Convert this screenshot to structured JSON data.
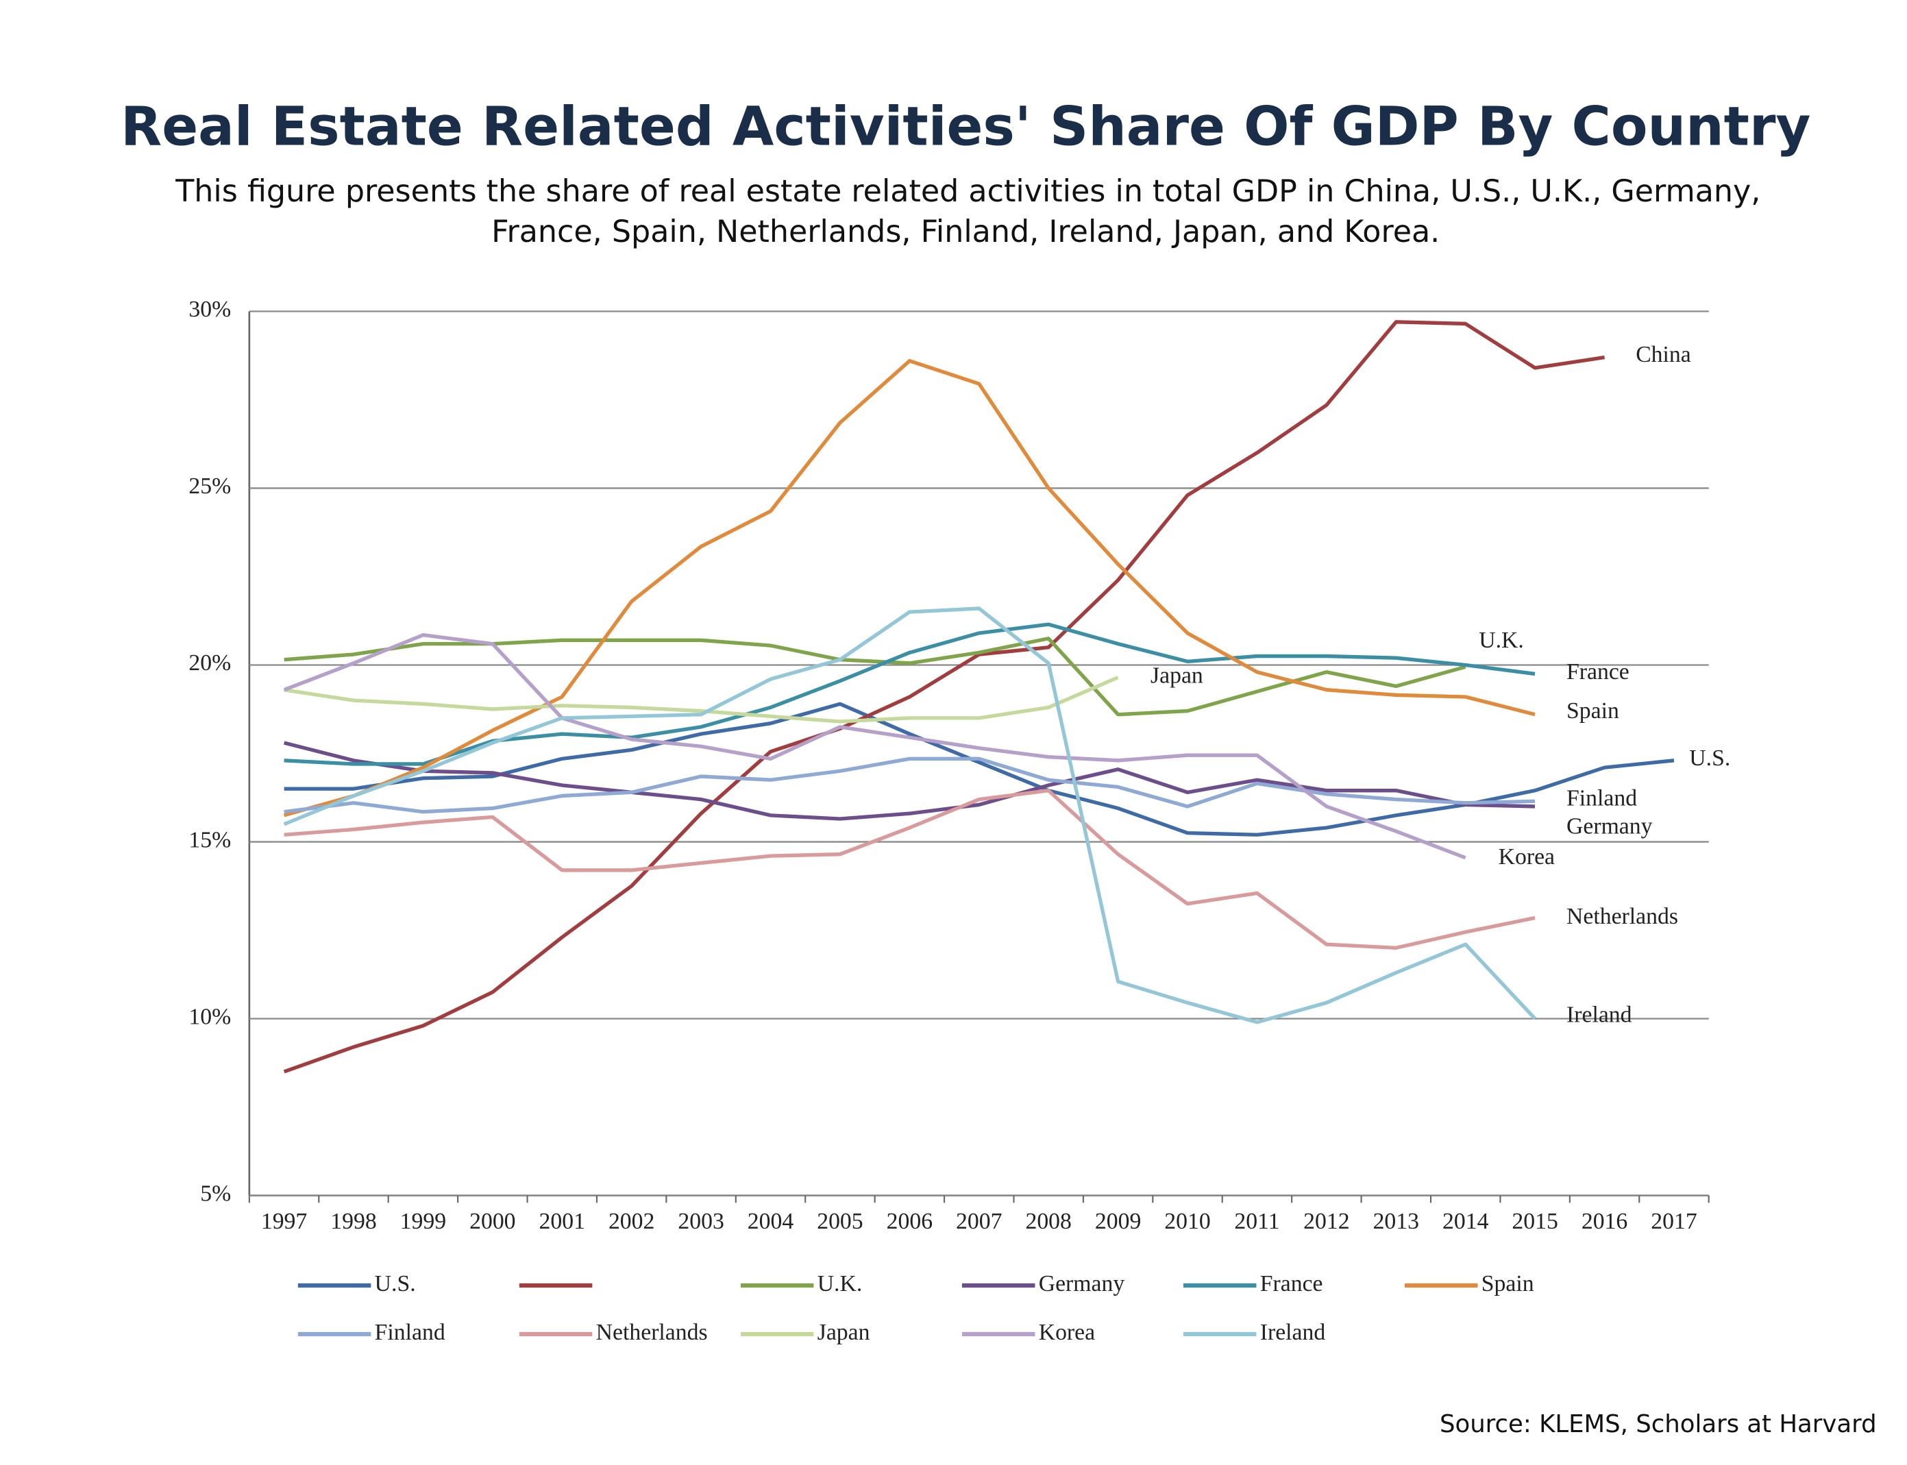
{
  "chart_data": {
    "type": "line",
    "title": "Real Estate Related Activities' Share Of GDP By Country",
    "subtitle": [
      "This figure presents the share of real estate related activities in total GDP in China, U.S., U.K., Germany,",
      "France, Spain, Netherlands, Finland, Ireland, Japan, and Korea."
    ],
    "source": "Source: KLEMS, Scholars at Harvard",
    "categories": [
      "1997",
      "1998",
      "1999",
      "2000",
      "2001",
      "2002",
      "2003",
      "2004",
      "2005",
      "2006",
      "2007",
      "2008",
      "2009",
      "2010",
      "2011",
      "2012",
      "2013",
      "2014",
      "2015",
      "2016",
      "2017"
    ],
    "ylim": [
      5,
      30
    ],
    "yticks": [
      {
        "value": 5,
        "label": "5%"
      },
      {
        "value": 10,
        "label": "10%"
      },
      {
        "value": 15,
        "label": "15%"
      },
      {
        "value": 20,
        "label": "20%"
      },
      {
        "value": 25,
        "label": "25%"
      },
      {
        "value": 30,
        "label": "30%"
      }
    ],
    "grid": true,
    "legend": "bottom",
    "series": [
      {
        "name": "U.S.",
        "color": "#3e6aa6",
        "values": [
          16.5,
          16.5,
          16.8,
          16.85,
          17.35,
          17.6,
          18.05,
          18.35,
          18.9,
          18.05,
          17.25,
          16.45,
          15.95,
          15.25,
          15.2,
          15.4,
          15.75,
          16.05,
          16.45,
          17.1,
          17.3
        ]
      },
      {
        "name": "China",
        "legend_label_hidden": true,
        "color": "#a13d3e",
        "values": [
          8.5,
          9.2,
          9.8,
          10.75,
          12.3,
          13.75,
          15.8,
          17.55,
          18.2,
          19.1,
          20.3,
          20.5,
          22.4,
          24.8,
          26,
          27.35,
          29.7,
          29.65,
          28.4,
          28.7,
          null
        ]
      },
      {
        "name": "U.K.",
        "color": "#7fa44a",
        "values": [
          20.15,
          20.3,
          20.6,
          20.6,
          20.7,
          20.7,
          20.7,
          20.55,
          20.15,
          20.05,
          20.35,
          20.75,
          18.6,
          18.7,
          19.25,
          19.8,
          19.4,
          19.95,
          null,
          null,
          null
        ]
      },
      {
        "name": "Germany",
        "color": "#6b4e8a",
        "values": [
          17.8,
          17.3,
          17.0,
          16.95,
          16.6,
          16.4,
          16.2,
          15.75,
          15.65,
          15.8,
          16.05,
          16.6,
          17.05,
          16.4,
          16.75,
          16.45,
          16.45,
          16.05,
          16.0,
          null,
          null
        ]
      },
      {
        "name": "France",
        "color": "#3a8fa4",
        "values": [
          17.3,
          17.2,
          17.2,
          17.85,
          18.05,
          17.95,
          18.25,
          18.8,
          19.55,
          20.35,
          20.9,
          21.15,
          20.6,
          20.1,
          20.25,
          20.25,
          20.2,
          20.0,
          19.75,
          null,
          null
        ]
      },
      {
        "name": "Spain",
        "color": "#e08a3c",
        "values": [
          15.75,
          16.3,
          17.1,
          18.15,
          19.1,
          21.8,
          23.35,
          24.35,
          26.85,
          28.6,
          27.95,
          25.0,
          22.85,
          20.9,
          19.8,
          19.3,
          19.15,
          19.1,
          18.6,
          null,
          null
        ]
      },
      {
        "name": "Finland",
        "color": "#8ea9d4",
        "values": [
          15.85,
          16.1,
          15.85,
          15.95,
          16.3,
          16.4,
          16.85,
          16.75,
          17.0,
          17.35,
          17.35,
          16.75,
          16.55,
          16.0,
          16.65,
          16.35,
          16.2,
          16.1,
          16.15,
          null,
          null
        ]
      },
      {
        "name": "Netherlands",
        "color": "#d89a9a",
        "values": [
          15.2,
          15.35,
          15.55,
          15.7,
          14.2,
          14.2,
          14.4,
          14.6,
          14.65,
          15.4,
          16.2,
          16.45,
          14.65,
          13.25,
          13.55,
          12.1,
          12.0,
          12.45,
          12.85,
          null,
          null
        ]
      },
      {
        "name": "Japan",
        "color": "#c6d99c",
        "values": [
          19.3,
          19.0,
          18.9,
          18.75,
          18.85,
          18.8,
          18.7,
          18.55,
          18.4,
          18.5,
          18.5,
          18.8,
          19.65,
          null,
          null,
          null,
          null,
          null,
          null,
          null,
          null
        ]
      },
      {
        "name": "Korea",
        "color": "#b4a0c8",
        "values": [
          19.3,
          20.05,
          20.85,
          20.6,
          18.5,
          17.9,
          17.7,
          17.35,
          18.25,
          17.95,
          17.65,
          17.4,
          17.3,
          17.45,
          17.45,
          16.0,
          15.3,
          14.55,
          null,
          null,
          null
        ]
      },
      {
        "name": "Ireland",
        "color": "#93c6d6",
        "values": [
          15.5,
          16.3,
          17.0,
          17.8,
          18.5,
          18.55,
          18.6,
          19.6,
          20.15,
          21.5,
          21.6,
          20.05,
          11.05,
          10.45,
          9.9,
          10.45,
          11.3,
          12.1,
          10.0,
          null,
          null
        ]
      }
    ]
  }
}
